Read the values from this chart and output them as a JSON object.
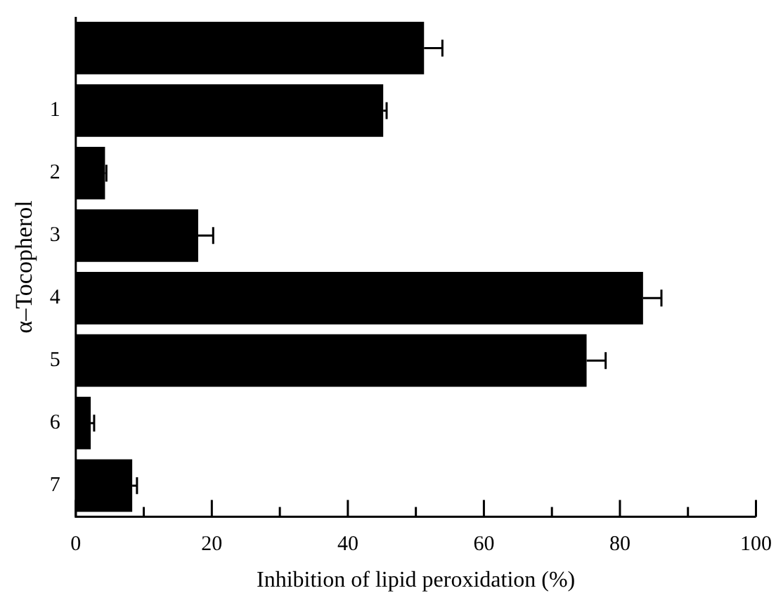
{
  "chart_data": {
    "type": "bar",
    "orientation": "horizontal",
    "xlabel": "Inhibition of lipid peroxidation (%)",
    "ylabel": "α–Tocopherol",
    "categories": [
      null,
      "1",
      "2",
      "3",
      "4",
      "5",
      "6",
      "7"
    ],
    "values": [
      51.2,
      45.2,
      4.3,
      18.0,
      83.4,
      75.1,
      2.2,
      8.3
    ],
    "errors": [
      [
        51.2,
        53.9
      ],
      [
        45.2,
        45.7
      ],
      [
        4.3,
        4.5
      ],
      [
        18.0,
        20.2
      ],
      [
        83.4,
        86.1
      ],
      [
        75.1,
        77.9
      ],
      [
        2.2,
        2.7
      ],
      [
        8.3,
        9.0
      ]
    ],
    "color": "#000000",
    "xlim": [
      0,
      100
    ],
    "xticks": [
      0,
      {
        "value": 10,
        "label": null
      },
      20,
      {
        "value": 30,
        "label": null
      },
      40,
      {
        "value": 50,
        "label": null
      },
      60,
      {
        "value": 70,
        "label": null
      },
      80,
      {
        "value": 90,
        "label": null
      },
      100
    ]
  }
}
